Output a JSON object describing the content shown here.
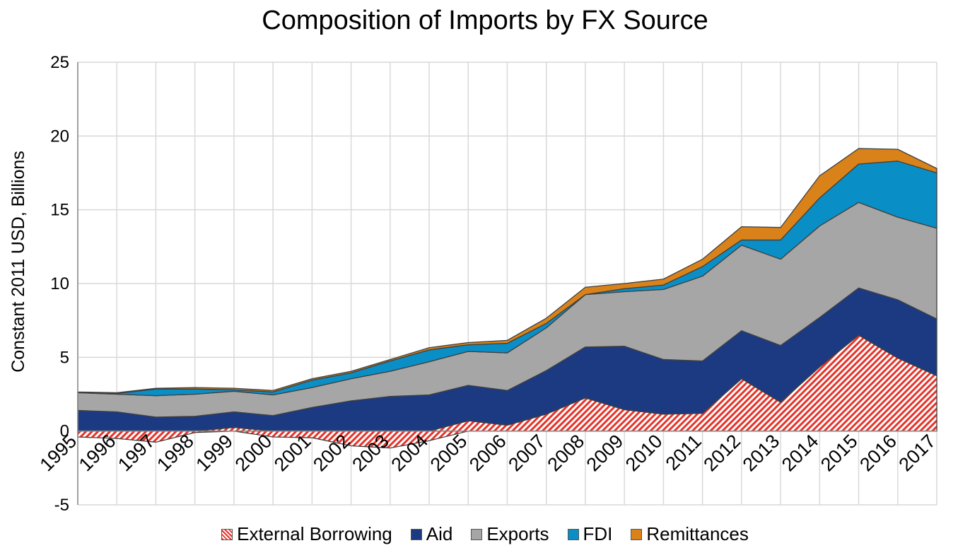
{
  "chart_data": {
    "type": "area",
    "title": "Composition of Imports by FX Source",
    "xlabel": "",
    "ylabel": "Constant 2011 USD, Billions",
    "x": [
      "1995",
      "1996",
      "1997",
      "1998",
      "1999",
      "2000",
      "2001",
      "2002",
      "2003",
      "2004",
      "2005",
      "2006",
      "2007",
      "2008",
      "2009",
      "2010",
      "2011",
      "2012",
      "2013",
      "2014",
      "2015",
      "2016",
      "2017"
    ],
    "ylim": [
      -5,
      25
    ],
    "yticks": [
      "25",
      "20",
      "15",
      "10",
      "5",
      "0",
      "-5"
    ],
    "ytick_values": [
      25,
      20,
      15,
      10,
      5,
      0,
      -5
    ],
    "grid": true,
    "legend_position": "bottom",
    "stacked": true,
    "series": [
      {
        "name": "External Borrowing",
        "color": "#e8332a",
        "pattern": "hatch",
        "values": [
          -0.4,
          -0.5,
          -0.75,
          -0.1,
          0.25,
          -0.4,
          -0.45,
          -1.0,
          -1.15,
          -0.65,
          0.7,
          0.4,
          1.15,
          2.25,
          1.45,
          1.15,
          1.2,
          3.55,
          1.95,
          4.35,
          6.5,
          4.95,
          3.75
        ]
      },
      {
        "name": "Aid",
        "color": "#1c3a82",
        "values": [
          1.4,
          1.3,
          0.95,
          1.0,
          1.05,
          1.05,
          1.6,
          2.05,
          2.35,
          2.45,
          2.4,
          2.35,
          2.95,
          3.45,
          4.3,
          3.7,
          3.55,
          3.25,
          3.85,
          3.35,
          3.2,
          3.95,
          3.85
        ]
      },
      {
        "name": "Exports",
        "color": "#a6a6a6",
        "values": [
          1.2,
          1.2,
          1.45,
          1.5,
          1.4,
          1.4,
          1.35,
          1.5,
          1.7,
          2.25,
          2.3,
          2.55,
          2.9,
          3.55,
          3.7,
          4.75,
          5.75,
          5.8,
          5.85,
          6.2,
          5.8,
          5.6,
          6.15
        ]
      },
      {
        "name": "FDI",
        "color": "#0a8ec6",
        "values": [
          0.0,
          0.05,
          0.45,
          0.35,
          0.1,
          0.2,
          0.5,
          0.4,
          0.7,
          0.8,
          0.45,
          0.65,
          0.3,
          0.0,
          0.2,
          0.3,
          0.65,
          0.35,
          1.3,
          1.9,
          2.6,
          3.8,
          3.75
        ]
      },
      {
        "name": "Remittances",
        "color": "#d98219",
        "values": [
          0.05,
          0.05,
          0.05,
          0.1,
          0.1,
          0.1,
          0.1,
          0.1,
          0.1,
          0.15,
          0.15,
          0.2,
          0.35,
          0.5,
          0.35,
          0.4,
          0.5,
          0.9,
          0.85,
          1.5,
          1.05,
          0.8,
          0.3
        ]
      }
    ]
  }
}
